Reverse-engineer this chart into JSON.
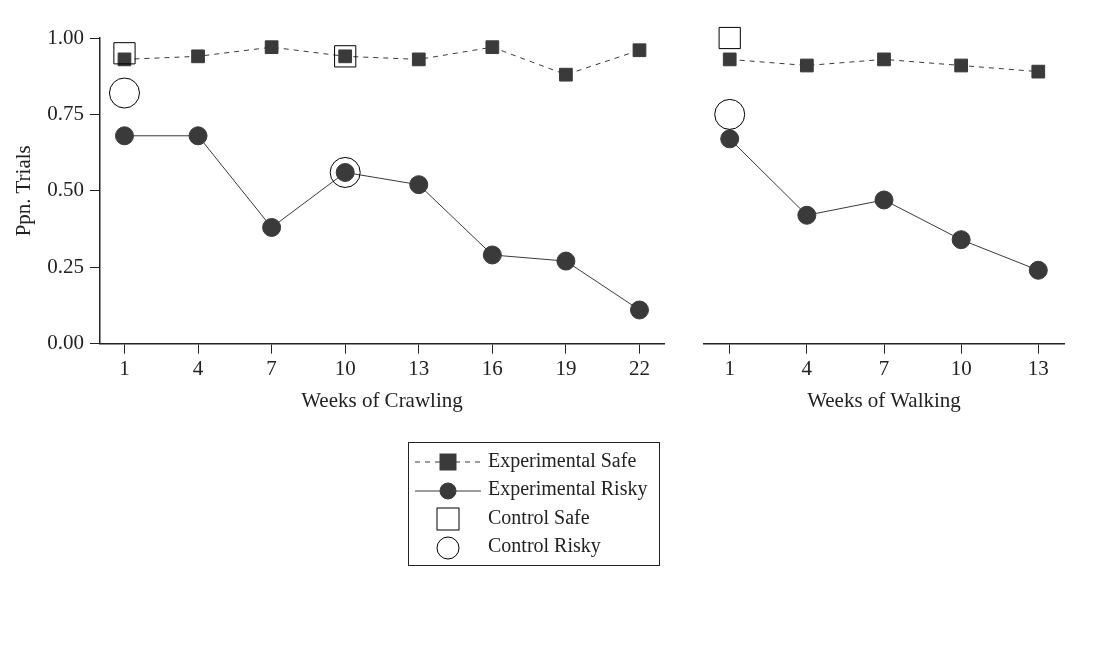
{
  "chart_data": [
    {
      "type": "line",
      "xlabel": "Weeks of Crawling",
      "ylabel": "Ppn. Trials",
      "xlim": [
        0,
        23
      ],
      "xticks": [
        1,
        4,
        7,
        10,
        13,
        16,
        19,
        22
      ],
      "ylim": [
        0,
        1
      ],
      "yticks": [
        {
          "value": 0,
          "label": "0.00"
        },
        {
          "value": 0.25,
          "label": "0.25"
        },
        {
          "value": 0.5,
          "label": "0.50"
        },
        {
          "value": 0.75,
          "label": "0.75"
        },
        {
          "value": 1,
          "label": "1.00"
        }
      ],
      "grid": false,
      "legend": "bottom",
      "series": [
        {
          "name": "Experimental Safe",
          "color": "#3a3a3a",
          "marker": "square",
          "line_style": "dashed",
          "x": [
            1,
            4,
            7,
            10,
            13,
            16,
            19,
            22
          ],
          "values": [
            0.93,
            0.94,
            0.97,
            0.94,
            0.93,
            0.97,
            0.88,
            0.96
          ]
        },
        {
          "name": "Experimental Risky",
          "color": "#3a3a3a",
          "marker": "circle",
          "line_style": "solid",
          "x": [
            1,
            4,
            7,
            10,
            13,
            16,
            19,
            22
          ],
          "values": [
            0.68,
            0.68,
            0.38,
            0.56,
            0.52,
            0.29,
            0.27,
            0.11
          ]
        },
        {
          "name": "Control Safe",
          "type": "scatter",
          "color": "#000000",
          "marker": "square",
          "x": [
            1,
            10
          ],
          "values": [
            0.95,
            0.94
          ]
        },
        {
          "name": "Control Risky",
          "type": "scatter",
          "color": "#000000",
          "marker": "circle",
          "x": [
            1,
            10
          ],
          "values": [
            0.82,
            0.56
          ]
        }
      ]
    },
    {
      "type": "line",
      "xlabel": "Weeks of Walking",
      "xlim": [
        0,
        14
      ],
      "xticks": [
        1,
        4,
        7,
        10,
        13
      ],
      "ylim": [
        0,
        1
      ],
      "tick_labels": "x",
      "grid": false,
      "series": [
        {
          "color": "#3a3a3a",
          "marker": "square",
          "line_style": "dashed",
          "x": [
            1,
            4,
            7,
            10,
            13
          ],
          "values": [
            0.93,
            0.91,
            0.93,
            0.91,
            0.89
          ]
        },
        {
          "color": "#3a3a3a",
          "marker": "circle",
          "line_style": "solid",
          "x": [
            1,
            4,
            7,
            10,
            13
          ],
          "values": [
            0.67,
            0.42,
            0.47,
            0.34,
            0.24
          ]
        },
        {
          "type": "scatter",
          "color": "#000000",
          "marker": "square",
          "x": [
            1
          ],
          "values": [
            1.0
          ]
        },
        {
          "type": "scatter",
          "color": "#000000",
          "marker": "circle",
          "x": [
            1
          ],
          "values": [
            0.75
          ]
        }
      ]
    }
  ]
}
